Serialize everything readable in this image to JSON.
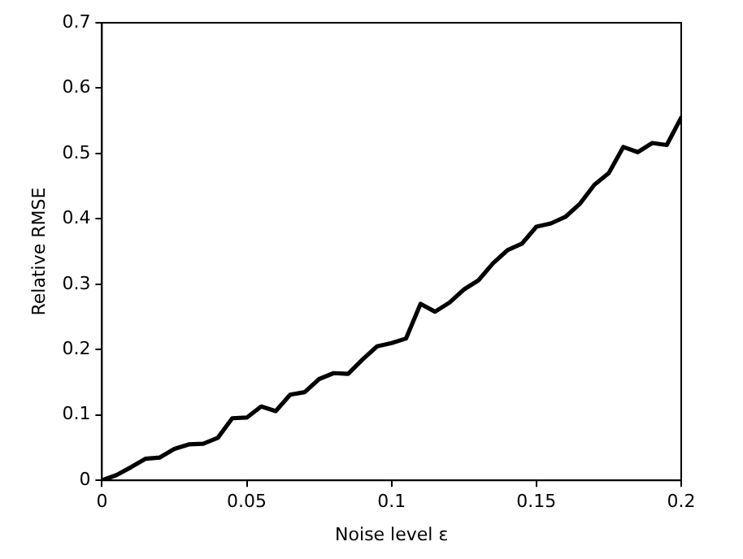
{
  "chart_data": {
    "type": "line",
    "xlabel": "Noise level ε",
    "ylabel": "Relative RMSE",
    "x": [
      0,
      0.005,
      0.01,
      0.015,
      0.02,
      0.025,
      0.03,
      0.035,
      0.04,
      0.045,
      0.05,
      0.055,
      0.06,
      0.065,
      0.07,
      0.075,
      0.08,
      0.085,
      0.09,
      0.095,
      0.1,
      0.105,
      0.11,
      0.115,
      0.12,
      0.125,
      0.13,
      0.135,
      0.14,
      0.145,
      0.15,
      0.155,
      0.16,
      0.165,
      0.17,
      0.175,
      0.18,
      0.185,
      0.19,
      0.195,
      0.2
    ],
    "series": [
      {
        "color": "#000000",
        "values": [
          0,
          0.008,
          0.02,
          0.033,
          0.035,
          0.048,
          0.055,
          0.056,
          0.065,
          0.095,
          0.096,
          0.113,
          0.106,
          0.131,
          0.135,
          0.155,
          0.164,
          0.163,
          0.185,
          0.205,
          0.21,
          0.217,
          0.27,
          0.258,
          0.272,
          0.292,
          0.306,
          0.332,
          0.352,
          0.362,
          0.388,
          0.393,
          0.403,
          0.423,
          0.452,
          0.47,
          0.51,
          0.502,
          0.516,
          0.513,
          0.555
        ]
      }
    ],
    "xlim": [
      0,
      0.2
    ],
    "xticks": [
      0,
      0.05,
      0.1,
      0.15,
      0.2
    ],
    "ylim": [
      0,
      0.7
    ],
    "yticks": [
      0,
      0.1,
      0.2,
      0.3,
      0.4,
      0.5,
      0.6,
      0.7
    ],
    "grid": false,
    "legend": false,
    "marker": "none",
    "line_style": "solid"
  }
}
